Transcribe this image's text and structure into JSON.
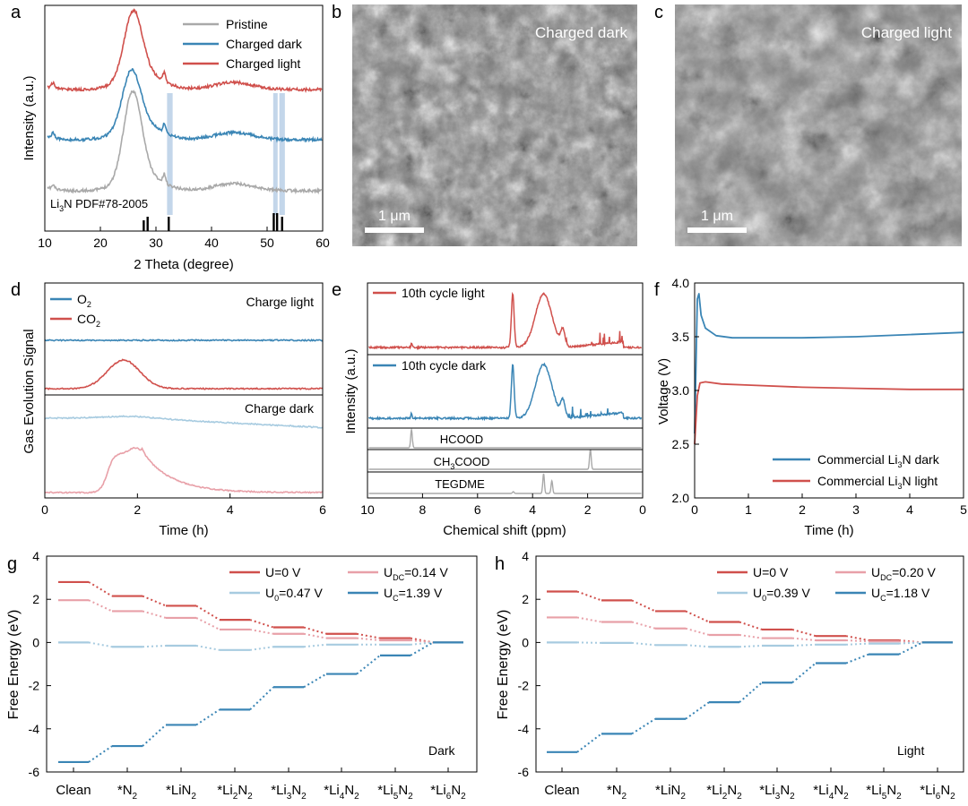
{
  "colors": {
    "red": "#d0504c",
    "blue": "#3a85b5",
    "gray": "#a9a9a9",
    "pink": "#e8a0a8",
    "lightblue": "#a7cbe0",
    "sem_bg": "#8e8e8e"
  },
  "panels": {
    "a": {
      "letter": "a",
      "ylabel": "Intensity (a.u.)",
      "xlabel": "2 Theta (degree)",
      "xticks": [
        "10",
        "20",
        "30",
        "40",
        "50",
        "60"
      ],
      "legend": [
        "Pristine",
        "Charged dark",
        "Charged light"
      ],
      "ref_label_pre": "Li",
      "ref_label_sub": "3",
      "ref_label_post": "N PDF#78-2005"
    },
    "b": {
      "letter": "b",
      "label": "Charged dark",
      "scale": "1 μm"
    },
    "c": {
      "letter": "c",
      "label": "Charged light",
      "scale": "1 μm"
    },
    "d": {
      "letter": "d",
      "ylabel": "Gas Evolution Signal",
      "xlabel": "Time (h)",
      "xticks": [
        "0",
        "2",
        "4",
        "6"
      ],
      "legend_o2_pre": "O",
      "legend_o2_sub": "2",
      "legend_co2_pre": "CO",
      "legend_co2_sub": "2",
      "label_top": "Charge light",
      "label_bottom": "Charge dark"
    },
    "e": {
      "letter": "e",
      "ylabel": "Intensity (a.u.)",
      "xlabel": "Chemical shift (ppm)",
      "xticks": [
        "10",
        "8",
        "6",
        "4",
        "2",
        "0"
      ],
      "legend_light": "10th cycle light",
      "legend_dark": "10th cycle dark",
      "ref1": "HCOOD",
      "ref2_pre": "CH",
      "ref2_sub": "3",
      "ref2_post": "COOD",
      "ref3": "TEGDME"
    },
    "f": {
      "letter": "f",
      "ylabel": "Voltage (V)",
      "xlabel": "Time (h)",
      "xticks": [
        "0",
        "1",
        "2",
        "3",
        "4",
        "5"
      ],
      "yticks": [
        "2.0",
        "2.5",
        "3.0",
        "3.5",
        "4.0"
      ],
      "legend_dark_pre": "Commercial Li",
      "legend_dark_sub": "3",
      "legend_dark_post": "N dark",
      "legend_light_pre": "Commercial Li",
      "legend_light_sub": "3",
      "legend_light_post": "N light"
    },
    "g": {
      "letter": "g",
      "ylabel": "Free Energy (eV)",
      "yticks": [
        "-6",
        "-4",
        "-2",
        "0",
        "2",
        "4"
      ],
      "corner": "Dark",
      "leg_u0": "U=0 V",
      "leg_udc_pre": "U",
      "leg_udc_sub": "DC",
      "leg_udc_post": "=0.14 V",
      "leg_uz_pre": "U",
      "leg_uz_sub": "0",
      "leg_uz_post": "=0.47 V",
      "leg_uc_pre": "U",
      "leg_uc_sub": "C",
      "leg_uc_post": "=1.39 V"
    },
    "h": {
      "letter": "h",
      "ylabel": "Free Energy (eV)",
      "yticks": [
        "-6",
        "-4",
        "-2",
        "0",
        "2",
        "4"
      ],
      "corner": "Light",
      "leg_u0": "U=0 V",
      "leg_udc_pre": "U",
      "leg_udc_sub": "DC",
      "leg_udc_post": "=0.20 V",
      "leg_uz_pre": "U",
      "leg_uz_sub": "0",
      "leg_uz_post": "=0.39 V",
      "leg_uc_pre": "U",
      "leg_uc_sub": "C",
      "leg_uc_post": "=1.18 V"
    }
  },
  "steps": [
    {
      "pre": "Clean",
      "sub": "",
      "post": ""
    },
    {
      "pre": "*N",
      "sub": "2",
      "post": ""
    },
    {
      "pre": "*LiN",
      "sub": "2",
      "post": ""
    },
    {
      "pre": "*Li",
      "sub": "2",
      "post": "N2"
    },
    {
      "pre": "*Li",
      "sub": "3",
      "post": "N2"
    },
    {
      "pre": "*Li",
      "sub": "4",
      "post": "N2"
    },
    {
      "pre": "*Li",
      "sub": "5",
      "post": "N2"
    },
    {
      "pre": "*Li",
      "sub": "6",
      "post": "N2"
    }
  ],
  "chart_data": [
    {
      "type": "line",
      "panel": "a",
      "xlabel": "2 Theta (degree)",
      "ylabel": "Intensity (a.u.)",
      "xlim": [
        10,
        60
      ],
      "series": [
        {
          "name": "Pristine",
          "peak_2theta": 25.8
        },
        {
          "name": "Charged dark",
          "peak_2theta": 25.6
        },
        {
          "name": "Charged light",
          "peak_2theta": 25.9
        }
      ],
      "reference": {
        "name": "Li3N PDF#78-2005",
        "peaks_2theta": [
          27.8,
          28.5,
          32.3,
          51.2,
          51.8,
          52.7
        ]
      },
      "highlight_2theta": [
        32.2,
        51.5,
        52.7
      ]
    },
    {
      "type": "line",
      "panel": "d",
      "xlabel": "Time (h)",
      "ylabel": "Gas Evolution Signal",
      "xlim": [
        0,
        6
      ],
      "series": [
        {
          "name": "O2",
          "condition": "Charge light"
        },
        {
          "name": "CO2",
          "condition": "Charge light",
          "peak_time_h": 1.7
        },
        {
          "name": "O2",
          "condition": "Charge dark"
        },
        {
          "name": "CO2",
          "condition": "Charge dark",
          "peak_time_h": 2.0
        }
      ]
    },
    {
      "type": "line",
      "panel": "e",
      "xlabel": "Chemical shift (ppm)",
      "ylabel": "Intensity (a.u.)",
      "xlim": [
        10,
        0
      ],
      "series": [
        {
          "name": "10th cycle light"
        },
        {
          "name": "10th cycle dark"
        },
        {
          "name": "HCOOD",
          "peak_ppm": 8.4
        },
        {
          "name": "CH3COOD",
          "peak_ppm": 1.9
        },
        {
          "name": "TEGDME",
          "peaks_ppm": [
            3.6,
            3.3
          ]
        }
      ]
    },
    {
      "type": "line",
      "panel": "f",
      "xlabel": "Time (h)",
      "ylabel": "Voltage (V)",
      "xlim": [
        0,
        5
      ],
      "ylim": [
        2.0,
        4.0
      ],
      "series": [
        {
          "name": "Commercial Li3N dark",
          "x": [
            0,
            0.05,
            0.08,
            0.12,
            0.2,
            0.4,
            0.7,
            1.0,
            2,
            3,
            4,
            5
          ],
          "y": [
            2.6,
            3.85,
            3.9,
            3.7,
            3.58,
            3.51,
            3.49,
            3.49,
            3.49,
            3.5,
            3.52,
            3.54
          ]
        },
        {
          "name": "Commercial Li3N light",
          "x": [
            0,
            0.05,
            0.1,
            0.2,
            0.5,
            1,
            2,
            3,
            4,
            5
          ],
          "y": [
            2.5,
            2.95,
            3.07,
            3.08,
            3.06,
            3.05,
            3.03,
            3.02,
            3.01,
            3.01
          ]
        }
      ]
    },
    {
      "type": "line",
      "panel": "g",
      "ylabel": "Free Energy (eV)",
      "ylim": [
        -6,
        4
      ],
      "categories": [
        "Clean",
        "*N2",
        "*LiN2",
        "*Li2N2",
        "*Li3N2",
        "*Li4N2",
        "*Li5N2",
        "*Li6N2"
      ],
      "series": [
        {
          "name": "U=0 V",
          "values": [
            2.8,
            2.15,
            1.7,
            1.05,
            0.7,
            0.4,
            0.2,
            0
          ]
        },
        {
          "name": "UDC=0.14 V",
          "values": [
            1.96,
            1.45,
            1.14,
            0.6,
            0.4,
            0.2,
            0.1,
            0
          ]
        },
        {
          "name": "U0=0.47 V",
          "values": [
            0,
            -0.2,
            -0.15,
            -0.35,
            -0.2,
            -0.1,
            -0.1,
            0
          ]
        },
        {
          "name": "UC=1.39 V",
          "values": [
            -5.54,
            -4.8,
            -3.82,
            -3.11,
            -2.07,
            -1.46,
            -0.6,
            0
          ]
        }
      ]
    },
    {
      "type": "line",
      "panel": "h",
      "ylabel": "Free Energy (eV)",
      "ylim": [
        -6,
        4
      ],
      "categories": [
        "Clean",
        "*N2",
        "*LiN2",
        "*Li2N2",
        "*Li3N2",
        "*Li4N2",
        "*Li5N2",
        "*Li6N2"
      ],
      "series": [
        {
          "name": "U=0 V",
          "values": [
            2.36,
            1.95,
            1.45,
            0.95,
            0.6,
            0.3,
            0.1,
            0
          ]
        },
        {
          "name": "UDC=0.20 V",
          "values": [
            1.16,
            0.95,
            0.65,
            0.35,
            0.2,
            0.1,
            0.05,
            0
          ]
        },
        {
          "name": "U0=0.39 V",
          "values": [
            0,
            -0.02,
            -0.12,
            -0.2,
            -0.15,
            -0.1,
            -0.05,
            0
          ]
        },
        {
          "name": "UC=1.18 V",
          "values": [
            -5.08,
            -4.23,
            -3.54,
            -2.77,
            -1.86,
            -0.96,
            -0.55,
            0
          ]
        }
      ]
    }
  ]
}
